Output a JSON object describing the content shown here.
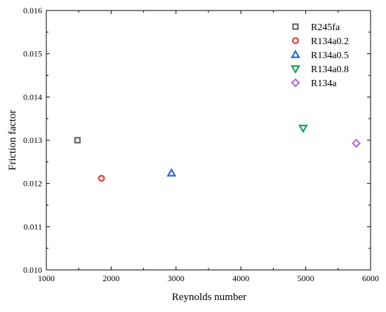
{
  "chart_data": {
    "type": "scatter",
    "xlabel": "Reynolds number",
    "ylabel": "Friction factor",
    "xlim": [
      1000,
      6000
    ],
    "ylim": [
      0.01,
      0.016
    ],
    "x_ticks": [
      "1000",
      "2000",
      "3000",
      "4000",
      "5000",
      "6000"
    ],
    "y_ticks": [
      "0.010",
      "0.011",
      "0.012",
      "0.013",
      "0.014",
      "0.015",
      "0.016"
    ],
    "grid": false,
    "legend_position": "top-right",
    "series": [
      {
        "name": "R245fa",
        "marker": "square",
        "color": "#666666",
        "x": [
          1480
        ],
        "y": [
          0.013
        ]
      },
      {
        "name": "R134a0.2",
        "marker": "circle",
        "color": "#e8353a",
        "x": [
          1850
        ],
        "y": [
          0.01212
        ]
      },
      {
        "name": "R134a0.5",
        "marker": "triangle-up",
        "color": "#1f6fd1",
        "x": [
          2930
        ],
        "y": [
          0.01224
        ]
      },
      {
        "name": "R134a0.8",
        "marker": "triangle-down",
        "color": "#1aa35a",
        "x": [
          4960
        ],
        "y": [
          0.01328
        ]
      },
      {
        "name": "R134a",
        "marker": "diamond",
        "color": "#b46ee0",
        "x": [
          5780
        ],
        "y": [
          0.01293
        ]
      }
    ]
  }
}
